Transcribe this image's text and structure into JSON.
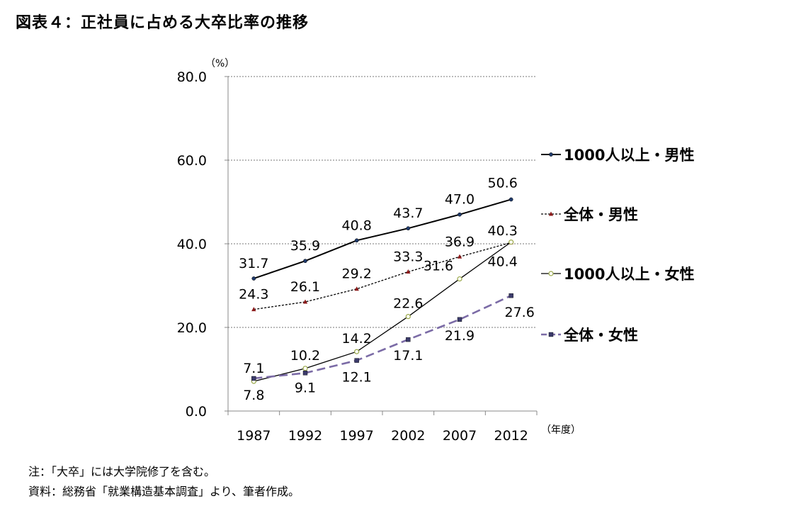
{
  "title": "図表４：正社員に占める大卒比率の推移",
  "notes": {
    "note": "注：「大卒」には大学院修了を含む。",
    "source": "資料：総務省「就業構造基本調査」より、筆者作成。"
  },
  "chart_data": {
    "type": "line",
    "title": "図表４：正社員に占める大卒比率の推移",
    "ylabel": "（%）",
    "xlabel": "（年度）",
    "ylim": [
      0,
      80
    ],
    "yticks": [
      "0.0",
      "20.0",
      "40.0",
      "60.0",
      "80.0"
    ],
    "grid": true,
    "legend_position": "right",
    "categories": [
      "1987",
      "1992",
      "1997",
      "2002",
      "2007",
      "2012"
    ],
    "series": [
      {
        "name": "1000人以上・男性",
        "values": [
          31.7,
          35.9,
          40.8,
          43.7,
          47.0,
          50.6
        ],
        "labels": [
          "31.7",
          "35.9",
          "40.8",
          "43.7",
          "47.0",
          "50.6"
        ],
        "color": "#000000",
        "style": "solid",
        "marker": "dot"
      },
      {
        "name": "全体・男性",
        "values": [
          24.3,
          26.1,
          29.2,
          33.3,
          36.9,
          40.3
        ],
        "labels": [
          "24.3",
          "26.1",
          "29.2",
          "33.3",
          "36.9",
          "40.3"
        ],
        "color": "#000000",
        "style": "dotted",
        "marker": "triangle",
        "markerColor": "#8b1a1a"
      },
      {
        "name": "1000人以上・女性",
        "values": [
          7.1,
          10.2,
          14.2,
          22.6,
          31.6,
          40.4
        ],
        "labels": [
          "7.1",
          "10.2",
          "14.2",
          "22.6",
          "31.6",
          "40.4"
        ],
        "color": "#000000",
        "style": "solid-thin",
        "marker": "circle",
        "markerColor": "#9aa84a"
      },
      {
        "name": "全体・女性",
        "values": [
          7.8,
          9.1,
          12.1,
          17.1,
          21.9,
          27.6
        ],
        "labels": [
          "7.8",
          "9.1",
          "12.1",
          "17.1",
          "21.9",
          "27.6"
        ],
        "color": "#7b6ba6",
        "style": "dashed",
        "marker": "square",
        "markerColor": "#3b3b6b"
      }
    ]
  }
}
